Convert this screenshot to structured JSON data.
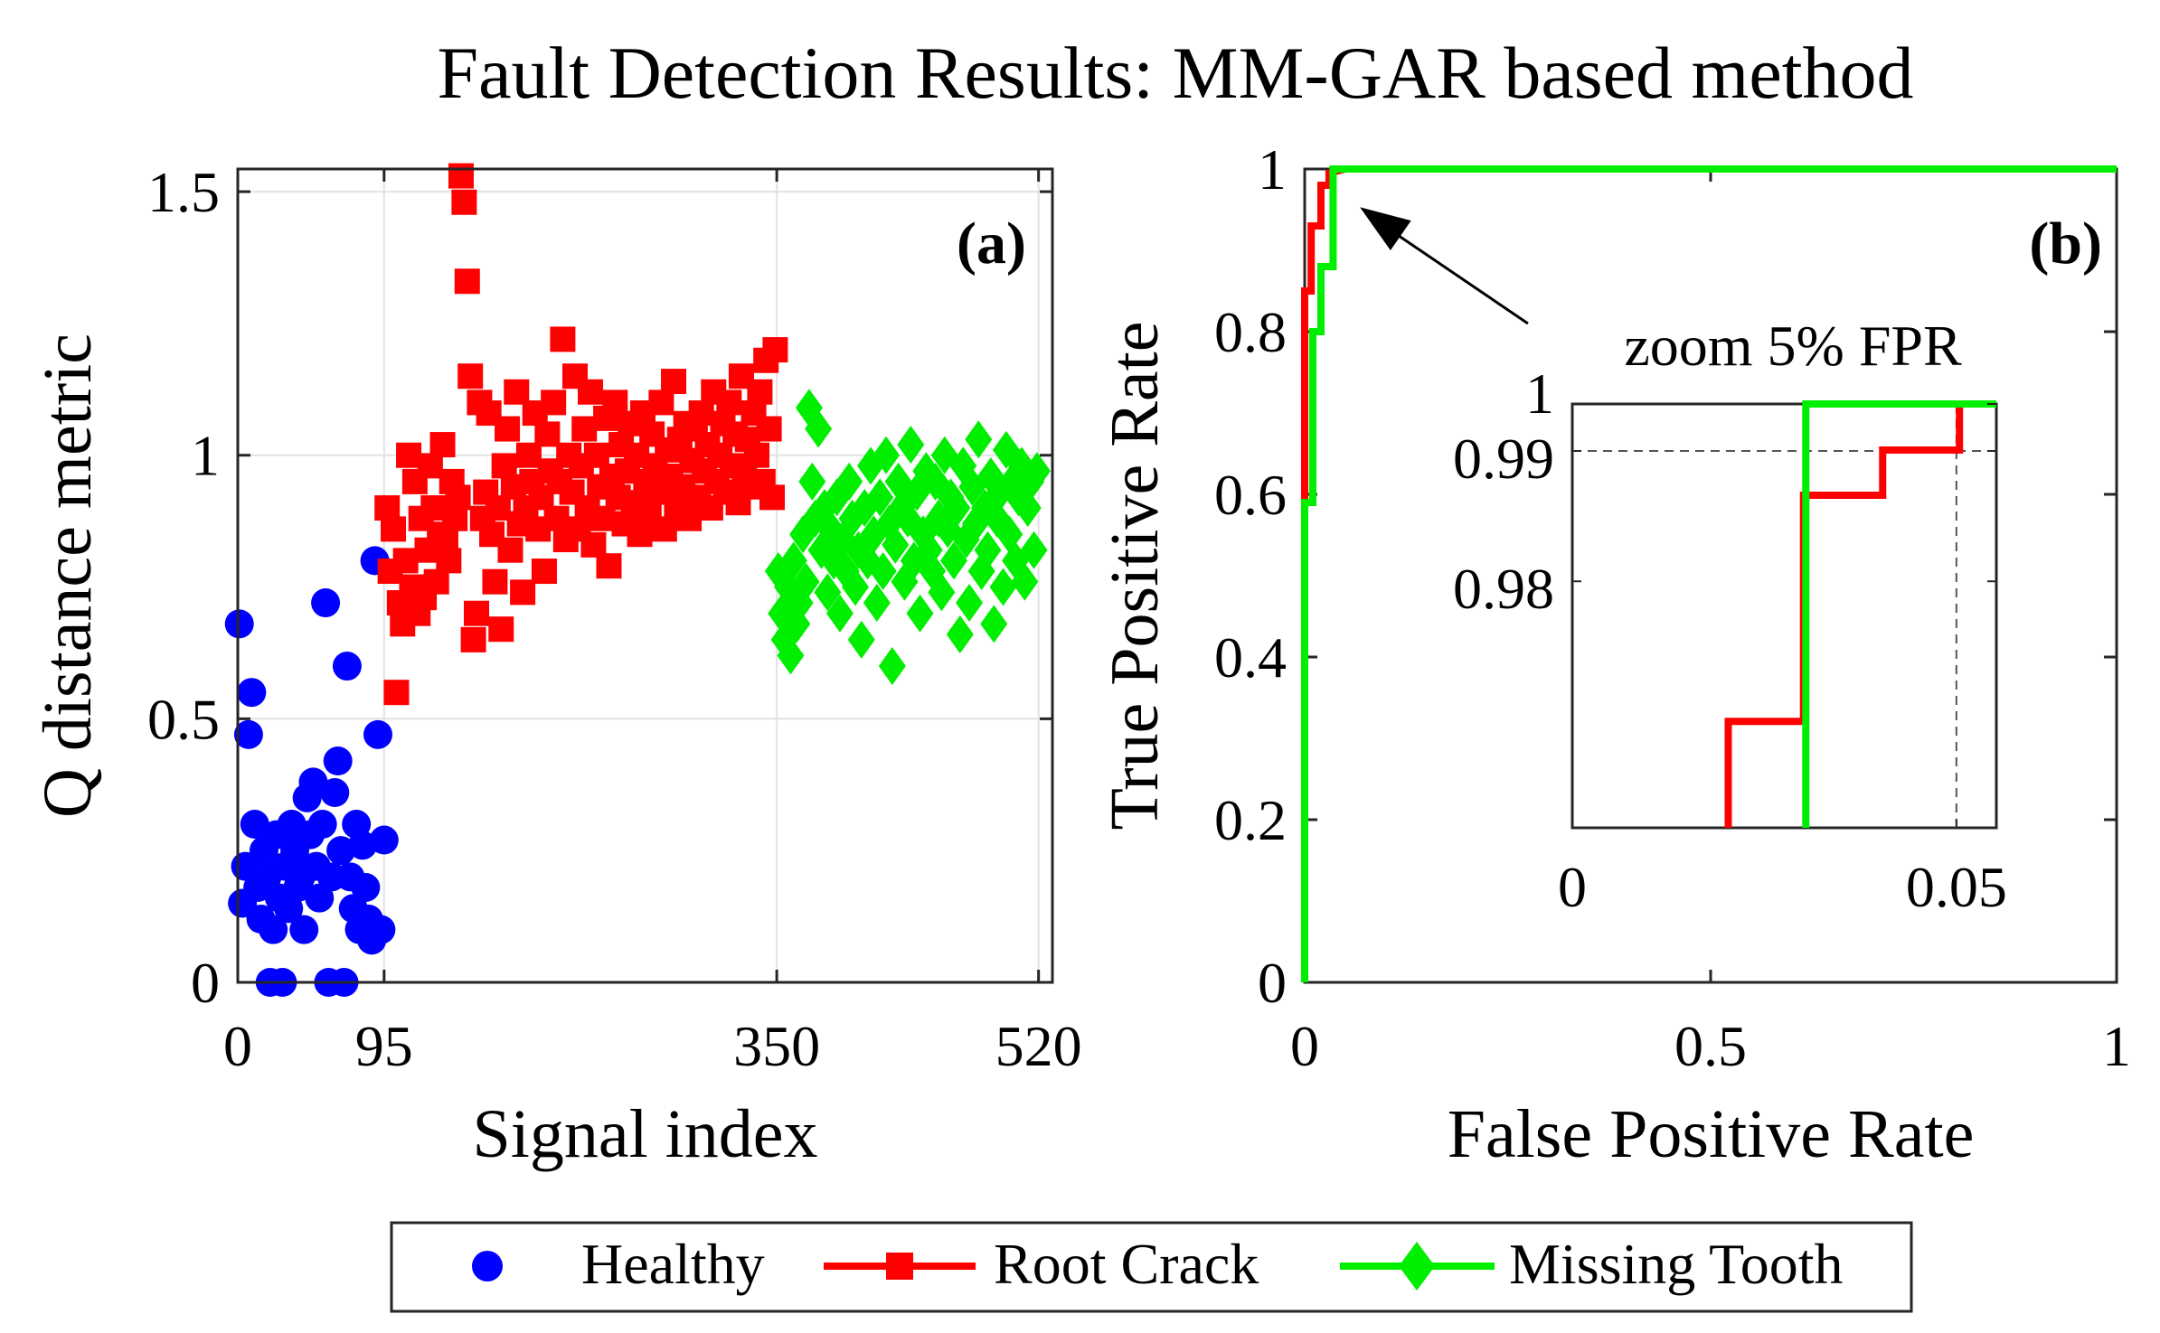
{
  "title": "Fault Detection Results: MM-GAR based method",
  "colors": {
    "healthy": "#0000ff",
    "crack": "#ff0000",
    "tooth": "#00ee00",
    "axis": "#262626",
    "grid": "#e2e2e2"
  },
  "legend": {
    "items": [
      {
        "label": "Healthy",
        "marker": "circle",
        "color": "#0000ff"
      },
      {
        "label": "Root Crack",
        "marker": "square",
        "color": "#ff0000"
      },
      {
        "label": "Missing Tooth",
        "marker": "diamond",
        "color": "#00ee00"
      }
    ],
    "placement": "bottom-center"
  },
  "chart_data": [
    {
      "type": "scatter",
      "panel_label": "(a)",
      "xlabel": "Signal index",
      "ylabel": "Q distance metric",
      "xlim": [
        0,
        529
      ],
      "ylim": [
        0,
        1.543
      ],
      "grid": true,
      "xticks": [
        {
          "v": 0,
          "label": "0"
        },
        {
          "v": 95,
          "label": "95"
        },
        {
          "v": 350,
          "label": "350"
        },
        {
          "v": 520,
          "label": "520"
        }
      ],
      "yticks": [
        {
          "v": 0,
          "label": "0"
        },
        {
          "v": 0.5,
          "label": "0.5"
        },
        {
          "v": 1,
          "label": "1"
        },
        {
          "v": 1.5,
          "label": "1.5"
        }
      ],
      "series": [
        {
          "name": "Healthy",
          "marker": "circle",
          "x_start": 1,
          "x_step": 2,
          "values": [
            0.68,
            0.15,
            0.22,
            0.47,
            0.55,
            0.3,
            0.18,
            0.12,
            0.25,
            0.2,
            0,
            0.1,
            0.28,
            0.16,
            0,
            0.22,
            0.14,
            0.3,
            0.25,
            0.18,
            0.2,
            0.1,
            0.35,
            0.28,
            0.38,
            0.22,
            0.16,
            0.3,
            0.72,
            0,
            0.2,
            0.36,
            0.42,
            0.25,
            0,
            0.6,
            0.2,
            0.14,
            0.3,
            0.1,
            0.26,
            0.18,
            0.12,
            0.08,
            0.8,
            0.47,
            0.1,
            0.27
          ]
        },
        {
          "name": "Root Crack",
          "marker": "square",
          "x_start": 97,
          "x_step": 2,
          "values": [
            0.9,
            0.78,
            0.86,
            0.55,
            0.72,
            0.68,
            0.8,
            1.0,
            0.75,
            0.95,
            0.7,
            0.88,
            0.73,
            0.82,
            0.98,
            0.9,
            0.76,
            0.85,
            1.02,
            0.84,
            0.8,
            0.95,
            0.88,
            0.92,
            1.53,
            1.48,
            1.33,
            1.15,
            0.65,
            0.7,
            1.1,
            0.88,
            0.93,
            1.08,
            0.85,
            0.76,
            0.9,
            0.67,
            0.98,
            1.05,
            0.82,
            0.94,
            1.12,
            0.87,
            0.74,
            0.9,
            1.0,
            0.95,
            1.08,
            0.86,
            0.92,
            0.78,
            1.04,
            0.97,
            1.1,
            0.88,
            0.95,
            1.22,
            0.84,
            1.0,
            0.93,
            1.15,
            0.86,
            0.98,
            1.05,
            0.9,
            1.12,
            0.83,
            1.0,
            0.94,
            0.88,
            1.07,
            0.79,
            0.96,
            1.1,
            0.92,
            1.02,
            0.87,
            0.97,
            1.06,
            0.91,
            1.0,
            0.85,
            1.08,
            0.95,
            0.89,
            1.04,
            0.98,
            0.93,
            1.1,
            0.86,
            1.01,
            0.96,
            1.14,
            0.9,
            1.03,
            0.94,
            1.06,
            0.88,
            0.99,
            1.05,
            0.92,
            1.08,
            0.97,
            1.02,
            0.9,
            1.12,
            0.95,
            1.0,
            1.06,
            0.93,
            1.1,
            0.98,
            1.04,
            0.91,
            1.15,
            0.97,
            1.03,
            0.94,
            1.08,
            1.0,
            1.12,
            0.95,
            1.18,
            1.05,
            0.92,
            1.2
          ]
        },
        {
          "name": "Missing Tooth",
          "marker": "diamond",
          "x_start": 351,
          "x_step": 2,
          "values": [
            0.78,
            0.7,
            0.65,
            0.75,
            0.62,
            0.8,
            0.68,
            0.72,
            0.85,
            0.76,
            1.09,
            0.95,
            0.88,
            1.05,
            0.82,
            0.9,
            0.74,
            0.86,
            0.8,
            0.92,
            0.7,
            0.84,
            0.78,
            0.95,
            0.88,
            0.75,
            0.82,
            0.65,
            0.9,
            0.8,
            0.98,
            0.85,
            0.72,
            0.92,
            0.78,
            1.0,
            0.87,
            0.6,
            0.83,
            0.95,
            0.9,
            0.76,
            0.88,
            1.02,
            0.8,
            0.93,
            0.7,
            0.85,
            0.97,
            0.82,
            0.78,
            0.95,
            0.88,
            0.74,
            1.0,
            0.86,
            0.92,
            0.8,
            0.9,
            0.66,
            0.98,
            0.84,
            0.72,
            0.94,
            0.87,
            1.03,
            0.78,
            0.9,
            0.82,
            0.96,
            0.68,
            0.88,
            0.93,
            0.75,
            1.01,
            0.85,
            0.95,
            0.8,
            0.92,
            0.98,
            0.76,
            0.9,
            0.95,
            0.82,
            0.97
          ]
        }
      ]
    },
    {
      "type": "line",
      "panel_label": "(b)",
      "xlabel": "False Positive Rate",
      "ylabel": "True Positive Rate",
      "xlim": [
        0,
        1
      ],
      "ylim": [
        0,
        1
      ],
      "grid": false,
      "xticks": [
        {
          "v": 0,
          "label": "0"
        },
        {
          "v": 0.5,
          "label": "0.5"
        },
        {
          "v": 1,
          "label": "1"
        }
      ],
      "yticks": [
        {
          "v": 0,
          "label": "0"
        },
        {
          "v": 0.2,
          "label": "0.2"
        },
        {
          "v": 0.4,
          "label": "0.4"
        },
        {
          "v": 0.6,
          "label": "0.6"
        },
        {
          "v": 0.8,
          "label": "0.8"
        },
        {
          "v": 1,
          "label": "1"
        }
      ],
      "series": [
        {
          "name": "Root Crack",
          "x": [
            0,
            0,
            0,
            0.008,
            0.008,
            0.02,
            0.02,
            0.03,
            0.03,
            0.05,
            1
          ],
          "y": [
            0,
            0.6,
            0.85,
            0.85,
            0.93,
            0.93,
            0.98,
            0.98,
            0.995,
            1,
            1
          ]
        },
        {
          "name": "Missing Tooth",
          "x": [
            0,
            0,
            0.01,
            0.01,
            0.02,
            0.02,
            0.035,
            0.035,
            1
          ],
          "y": [
            0,
            0.59,
            0.59,
            0.8,
            0.8,
            0.88,
            0.88,
            1,
            1
          ]
        }
      ],
      "annotation": {
        "text": "zoom  5% FPR",
        "arrow_from": [
          0.275,
          0.81
        ],
        "arrow_to": [
          0.068,
          0.953
        ]
      },
      "inset": {
        "xlim": [
          0,
          0.0552
        ],
        "ylim": [
          0.9522,
          1
        ],
        "xticks": [
          {
            "v": 0,
            "label": "0"
          },
          {
            "v": 0.05,
            "label": "0.05"
          }
        ],
        "yticks": [
          {
            "v": 1,
            "label": "1"
          },
          {
            "v": 0.9947,
            "label": "0.99"
          },
          {
            "v": 0.98,
            "label": "0.98"
          }
        ],
        "reference_lines": {
          "fpr": 0.05,
          "tpr": 0.9947
        },
        "series": [
          {
            "name": "Root Crack",
            "x": [
              0.0203,
              0.0203,
              0.0301,
              0.0301,
              0.0404,
              0.0404,
              0.0504,
              0.0504,
              0.0552
            ],
            "y": [
              0.9522,
              0.9642,
              0.9642,
              0.9897,
              0.9897,
              0.9948,
              0.9948,
              1,
              1
            ]
          },
          {
            "name": "Missing Tooth",
            "x": [
              0.0304,
              0.0304,
              0.0552
            ],
            "y": [
              0.9522,
              1,
              1
            ]
          }
        ]
      }
    }
  ]
}
